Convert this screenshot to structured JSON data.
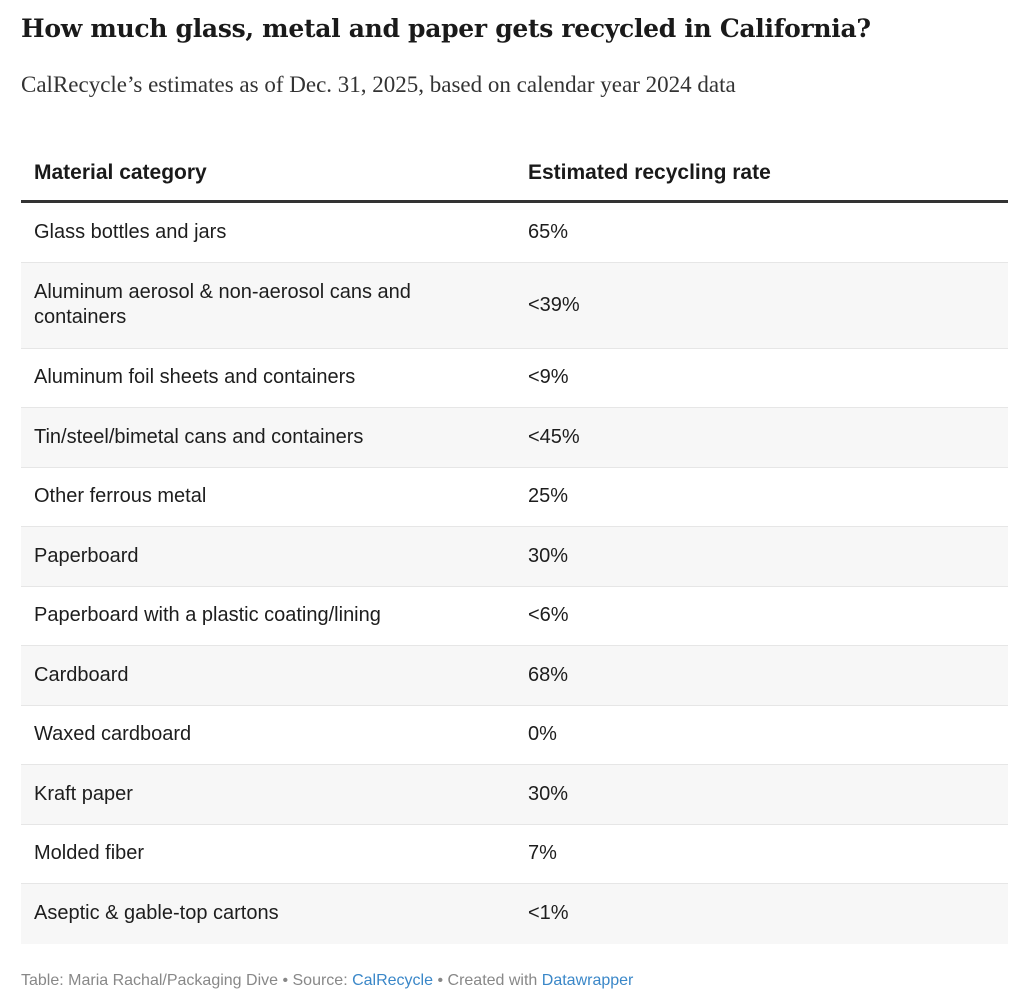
{
  "title": "How much glass, metal and paper gets recycled in California?",
  "subtitle": "CalRecycle’s estimates as of Dec. 31, 2025, based on calendar year 2024 data",
  "chart_data": {
    "type": "table",
    "columns": [
      "Material category",
      "Estimated recycling rate"
    ],
    "rows": [
      [
        "Glass bottles and jars",
        "65%"
      ],
      [
        "Aluminum aerosol & non-aerosol cans and containers",
        "<39%"
      ],
      [
        "Aluminum foil sheets and containers",
        "<9%"
      ],
      [
        "Tin/steel/bimetal cans and containers",
        "<45%"
      ],
      [
        "Other ferrous metal",
        "25%"
      ],
      [
        "Paperboard",
        "30%"
      ],
      [
        "Paperboard with a plastic coating/lining",
        "<6%"
      ],
      [
        "Cardboard",
        "68%"
      ],
      [
        "Waxed cardboard",
        "0%"
      ],
      [
        "Kraft paper",
        "30%"
      ],
      [
        "Molded fiber",
        "7%"
      ],
      [
        "Aseptic & gable-top cartons",
        "<1%"
      ]
    ]
  },
  "footer": {
    "credit": "Table: Maria Rachal/Packaging Dive • Source: ",
    "source_link": "CalRecycle",
    "created": " • Created with ",
    "tool_link": "Datawrapper",
    "link_color": "#3a87c8"
  }
}
